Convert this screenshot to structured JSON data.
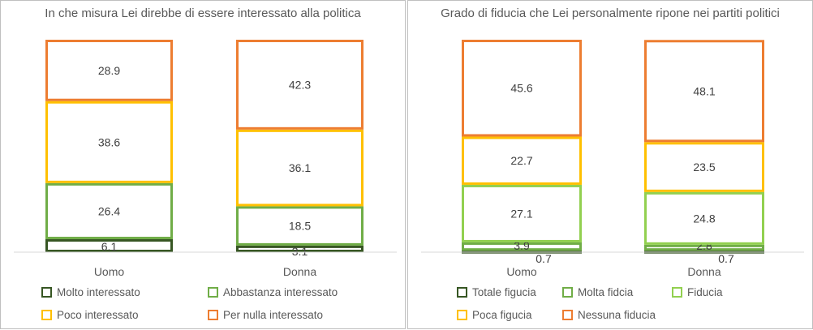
{
  "chart_data": [
    {
      "type": "bar",
      "stacked": true,
      "title": "In che misura Lei direbbe di essere interessato alla politica",
      "categories": [
        "Uomo",
        "Donna"
      ],
      "ylim": [
        0,
        100
      ],
      "series": [
        {
          "name": "Molto interessato",
          "color": "#375623",
          "values": [
            6.1,
            3.1
          ]
        },
        {
          "name": "Abbastanza interessato",
          "color": "#70AD47",
          "values": [
            26.4,
            18.5
          ]
        },
        {
          "name": "Poco interessato",
          "color": "#FFC000",
          "values": [
            38.6,
            36.1
          ]
        },
        {
          "name": "Per nulla interessato",
          "color": "#ED7D31",
          "values": [
            28.9,
            42.3
          ]
        }
      ]
    },
    {
      "type": "bar",
      "stacked": true,
      "title": "Grado di fiducia che Lei personalmente ripone nei partiti politici",
      "categories": [
        "Uomo",
        "Donna"
      ],
      "ylim": [
        0,
        100
      ],
      "series": [
        {
          "name": "Totale figucia",
          "color": "#375623",
          "values": [
            0.7,
            0.7
          ]
        },
        {
          "name": "Molta fidcia",
          "color": "#70AD47",
          "values": [
            3.9,
            2.8
          ]
        },
        {
          "name": "Fiducia",
          "color": "#92D050",
          "values": [
            27.1,
            24.8
          ]
        },
        {
          "name": "Poca figucia",
          "color": "#FFC000",
          "values": [
            22.7,
            23.5
          ]
        },
        {
          "name": "Nessuna fiducia",
          "color": "#ED7D31",
          "values": [
            45.6,
            48.1
          ]
        }
      ]
    }
  ]
}
